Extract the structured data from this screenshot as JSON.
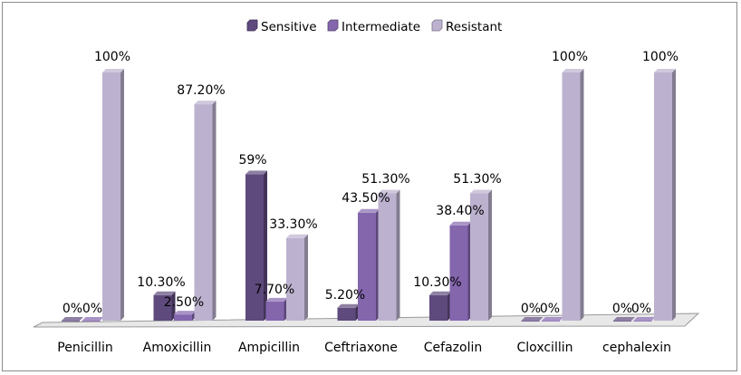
{
  "chart_data": {
    "type": "bar",
    "style": "3d-clustered-column",
    "categories": [
      "Penicillin",
      "Amoxicillin",
      "Ampicillin",
      "Ceftriaxone",
      "Cefazolin",
      "Cloxcillin",
      "cephalexin"
    ],
    "series": [
      {
        "name": "Sensitive",
        "values": [
          0,
          10.3,
          59,
          5.2,
          10.3,
          0,
          0
        ],
        "labels": [
          "0%",
          "10.30%",
          "59%",
          "5.20%",
          "10.30%",
          "0%",
          "0%"
        ],
        "color": "#5e4a7c"
      },
      {
        "name": "Intermediate",
        "values": [
          0,
          2.5,
          7.7,
          43.5,
          38.4,
          0,
          0
        ],
        "labels": [
          "0%",
          "2.50%",
          "7.70%",
          "43.50%",
          "38.40%",
          "0%",
          "0%"
        ],
        "color": "#8466ad"
      },
      {
        "name": "Resistant",
        "values": [
          100,
          87.2,
          33.3,
          51.3,
          51.3,
          100,
          100
        ],
        "labels": [
          "100%",
          "87.20%",
          "33.30%",
          "51.30%",
          "51.30%",
          "100%",
          "100%"
        ],
        "color": "#bcb2cf"
      }
    ],
    "ylim": [
      0,
      100
    ],
    "grid": false,
    "legend_position": "top"
  }
}
